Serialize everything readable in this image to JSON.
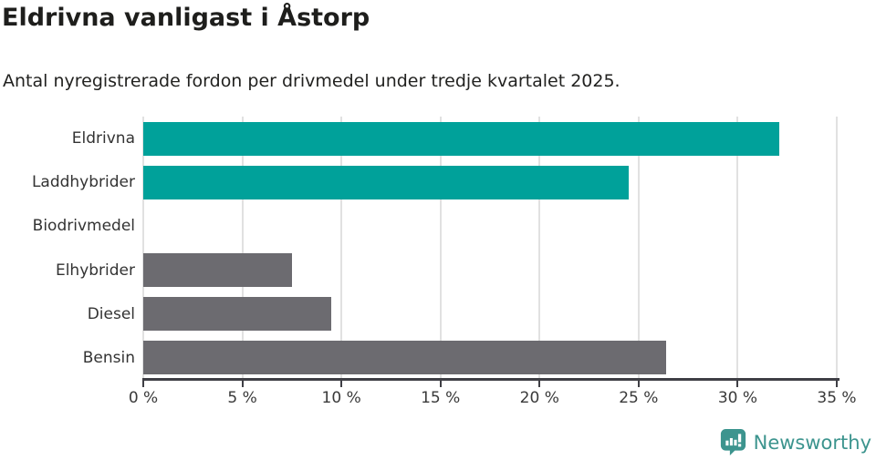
{
  "header": {
    "title": "Eldrivna vanligast i Åstorp",
    "subtitle": "Antal nyregistrerade fordon per drivmedel under tredje kvartalet 2025."
  },
  "chart_data": {
    "type": "bar",
    "orientation": "horizontal",
    "title": "Eldrivna vanligast i Åstorp",
    "subtitle": "Antal nyregistrerade fordon per drivmedel under tredje kvartalet 2025.",
    "categories": [
      "Eldrivna",
      "Laddhybrider",
      "Biodrivmedel",
      "Elhybrider",
      "Diesel",
      "Bensin"
    ],
    "values": [
      32.1,
      24.5,
      0,
      7.5,
      9.5,
      26.4
    ],
    "unit": "%",
    "bar_colors": [
      "#00a19a",
      "#00a19a",
      "#00a19a",
      "#6c6b70",
      "#6c6b70",
      "#6c6b70"
    ],
    "xlabel": "",
    "ylabel": "",
    "xlim": [
      0,
      35
    ],
    "x_ticks": [
      0,
      5,
      10,
      15,
      20,
      25,
      30,
      35
    ],
    "x_tick_labels": [
      "0 %",
      "5 %",
      "10 %",
      "15 %",
      "20 %",
      "25 %",
      "30 %",
      "35 %"
    ],
    "grid": true,
    "legend": "none"
  },
  "footer": {
    "brand": "Newsworthy",
    "brand_color": "#3c948e",
    "logo_icon": "bar-chart-speech-bubble-icon"
  },
  "colors": {
    "accent_teal": "#00a19a",
    "neutral_gray": "#6c6b70",
    "gridline": "#e1e1e1",
    "axis": "#3f3f45",
    "text": "#333333"
  }
}
